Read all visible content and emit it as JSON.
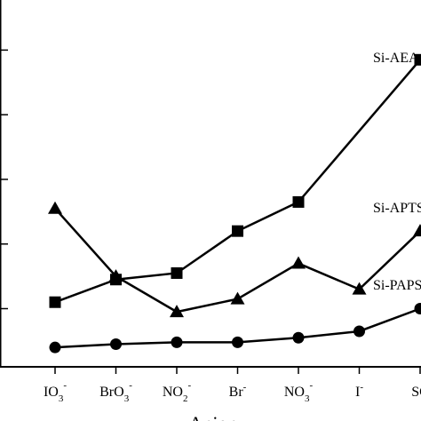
{
  "chart_data": {
    "type": "line",
    "xlabel": "Anion",
    "categories": [
      {
        "base": "IO",
        "sub": "3",
        "sup": "-"
      },
      {
        "base": "BrO",
        "sub": "3",
        "sup": "-"
      },
      {
        "base": "NO",
        "sub": "2",
        "sup": "-"
      },
      {
        "base": "Br",
        "sub": "",
        "sup": "-"
      },
      {
        "base": "NO",
        "sub": "3",
        "sup": "-"
      },
      {
        "base": "I",
        "sub": "",
        "sup": "-"
      },
      {
        "base": "SC",
        "sub": "",
        "sup": ""
      }
    ],
    "ylim": [
      0.1,
      5.5
    ],
    "series": [
      {
        "name": "Si-AEA",
        "marker": "square",
        "values": [
          1.1,
          1.45,
          1.55,
          2.2,
          2.65,
          null,
          4.85
        ]
      },
      {
        "name": "Si-APTS",
        "marker": "triangle",
        "values": [
          2.55,
          1.5,
          0.95,
          1.15,
          1.7,
          1.3,
          2.2
        ]
      },
      {
        "name": "Si-PAPS",
        "marker": "circle",
        "values": [
          0.4,
          0.45,
          0.48,
          0.48,
          0.55,
          0.65,
          1.0
        ]
      }
    ],
    "grid": false,
    "legend": "none"
  }
}
